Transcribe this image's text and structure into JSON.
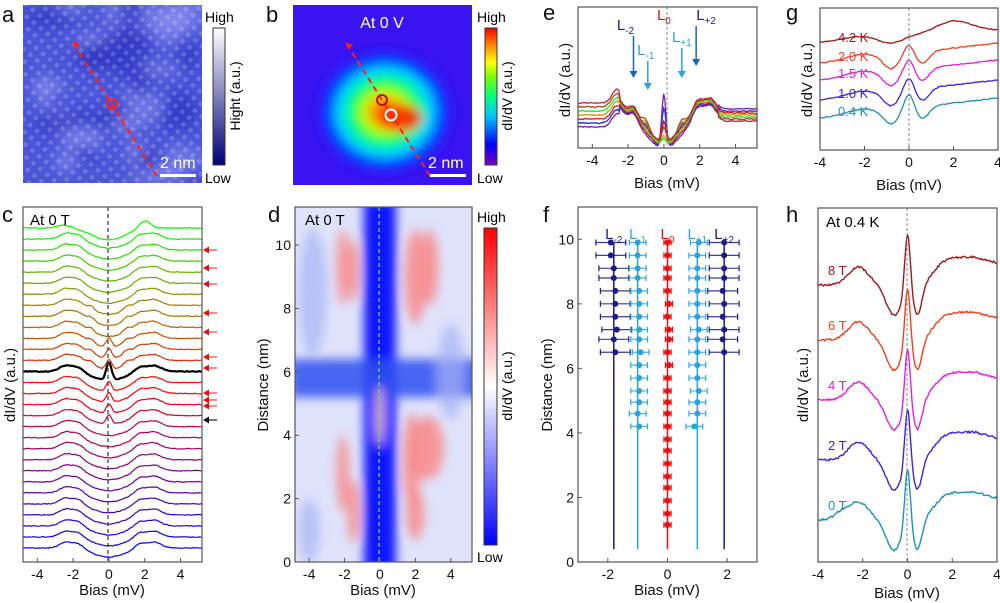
{
  "figure": {
    "panels": [
      "a",
      "b",
      "c",
      "d",
      "e",
      "f",
      "g",
      "h"
    ]
  },
  "chart_data": [
    {
      "panel": "a",
      "type": "heatmap",
      "description": "STM topography image",
      "colorbar": {
        "label": "Hight (a.u.)",
        "high": "High",
        "low": "Low",
        "colors": [
          "#00007a",
          "#ffffff"
        ]
      },
      "scale_bar": "2 nm",
      "annotations": [
        "red dashed arrow (line cut)",
        "red circle marker"
      ]
    },
    {
      "panel": "b",
      "type": "heatmap",
      "title": "At 0 V",
      "description": "dI/dV map at zero bias",
      "colorbar": {
        "label": "dI/dV (a.u.)",
        "high": "High",
        "low": "Low",
        "colors": [
          "#8000c0",
          "#0000ff",
          "#00c0ff",
          "#00ff80",
          "#80ff00",
          "#ffff00",
          "#ff8000",
          "#ff0000"
        ]
      },
      "scale_bar": "2 nm",
      "annotations": [
        "red dashed arrow (line cut)",
        "red circle marker",
        "white circle marker"
      ]
    },
    {
      "panel": "c",
      "type": "line",
      "title": "At 0 T",
      "xlabel": "Bias (mV)",
      "ylabel": "dI/dV (a.u.)",
      "xlim": [
        -4.8,
        5.2
      ],
      "xticks": [
        "-4",
        "-2",
        "0",
        "2",
        "4"
      ],
      "n_spectra": 30,
      "highlighted_spectrum_color": "#000000",
      "color_gradient": [
        "#0000ff",
        "#800080",
        "#ff0000",
        "#a08000",
        "#00ff00"
      ],
      "red_arrow_count": 10,
      "black_arrow_count": 1
    },
    {
      "panel": "d",
      "type": "heatmap",
      "title": "At 0 T",
      "xlabel": "Bias (mV)",
      "ylabel": "Distance (nm)",
      "xlim": [
        -4.8,
        5.2
      ],
      "ylim": [
        0,
        11.2
      ],
      "xticks": [
        "-4",
        "-2",
        "0",
        "2",
        "4"
      ],
      "yticks": [
        "0",
        "2",
        "4",
        "6",
        "8",
        "10"
      ],
      "colorbar": {
        "label": "dI/dV (a.u.)",
        "high": "High",
        "low": "Low",
        "colors": [
          "#0000ff",
          "#ffffff",
          "#ff0000"
        ]
      }
    },
    {
      "panel": "e",
      "type": "line",
      "xlabel": "Bias (mV)",
      "ylabel": "dI/dV (a.u.)",
      "xlim": [
        -4.8,
        5.2
      ],
      "xticks": [
        "-4",
        "-2",
        "0",
        "2",
        "4"
      ],
      "peak_labels": [
        {
          "text": "L",
          "sub": "-2",
          "bias": -1.7,
          "color": "#1a1a8c",
          "arrow_color": "#1565c0"
        },
        {
          "text": "L",
          "sub": "-1",
          "bias": -0.9,
          "color": "#29a3e0",
          "arrow_color": "#29a3e0"
        },
        {
          "text": "L",
          "sub": "0",
          "bias": 0.0,
          "color": "#e01010",
          "arrow_color": null
        },
        {
          "text": "L",
          "sub": "+1",
          "bias": 1.0,
          "color": "#29a3e0",
          "arrow_color": "#29a3e0"
        },
        {
          "text": "L",
          "sub": "+2",
          "bias": 1.8,
          "color": "#1a1a8c",
          "arrow_color": "#1565c0"
        }
      ],
      "series_colors": [
        "#7b1fa2",
        "#2030e0",
        "#e01818",
        "#c0a000",
        "#30e030",
        "#a05010",
        "#c02040"
      ]
    },
    {
      "panel": "f",
      "type": "scatter",
      "xlabel": "Bias (mV)",
      "ylabel": "Distance (nm)",
      "xlim": [
        -3,
        3
      ],
      "ylim": [
        0,
        11
      ],
      "xticks": [
        "-2",
        "0",
        "2"
      ],
      "yticks": [
        "0",
        "2",
        "4",
        "6",
        "8",
        "10"
      ],
      "series": [
        {
          "name": "L-2",
          "label": "L",
          "sub": "-2",
          "color": "#1a1a8c",
          "line_x": -1.8,
          "points": [
            [
              -1.9,
              9.9
            ],
            [
              -1.9,
              9.5
            ],
            [
              -1.8,
              9.1
            ],
            [
              -1.8,
              8.8
            ],
            [
              -1.75,
              8.4
            ],
            [
              -1.75,
              8.0
            ],
            [
              -1.75,
              7.6
            ],
            [
              -1.7,
              7.2
            ],
            [
              -1.8,
              6.9
            ],
            [
              -1.75,
              6.5
            ]
          ],
          "xerr": 0.5,
          "line_y": [
            0.4,
            9.9
          ]
        },
        {
          "name": "L-1",
          "label": "L",
          "sub": "-1",
          "color": "#29a3e0",
          "line_x": -1.0,
          "points": [
            [
              -1.0,
              9.9
            ],
            [
              -1.0,
              9.5
            ],
            [
              -1.0,
              9.1
            ],
            [
              -1.0,
              8.8
            ],
            [
              -0.95,
              8.4
            ],
            [
              -0.95,
              8.0
            ],
            [
              -0.95,
              7.6
            ],
            [
              -0.95,
              7.2
            ],
            [
              -0.95,
              6.9
            ],
            [
              -0.9,
              6.5
            ],
            [
              -0.95,
              6.1
            ],
            [
              -0.95,
              5.7
            ],
            [
              -0.95,
              5.3
            ],
            [
              -0.95,
              4.95
            ],
            [
              -1.0,
              4.6
            ],
            [
              -0.95,
              4.2
            ]
          ],
          "xerr": 0.28,
          "line_y": [
            0.4,
            9.9
          ]
        },
        {
          "name": "L0",
          "label": "L",
          "sub": "0",
          "color": "#e81010",
          "line_x": 0.0,
          "points": [
            [
              0,
              9.9
            ],
            [
              0,
              9.5
            ],
            [
              0,
              9.1
            ],
            [
              0,
              8.8
            ],
            [
              0,
              8.4
            ],
            [
              0.05,
              8.0
            ],
            [
              0,
              7.6
            ],
            [
              0.05,
              7.2
            ],
            [
              0.05,
              6.9
            ],
            [
              0,
              6.5
            ],
            [
              0.05,
              6.1
            ],
            [
              0,
              5.7
            ],
            [
              0,
              5.3
            ],
            [
              0,
              4.95
            ],
            [
              0,
              4.6
            ],
            [
              0,
              4.2
            ],
            [
              0,
              3.8
            ],
            [
              0,
              3.45
            ],
            [
              0,
              3.05
            ],
            [
              0,
              2.65
            ],
            [
              0,
              2.3
            ],
            [
              0,
              1.9
            ],
            [
              0,
              1.5
            ],
            [
              0,
              1.15
            ]
          ],
          "xerr": 0.12,
          "line_y": [
            0.4,
            9.9
          ]
        },
        {
          "name": "L+1",
          "label": "L",
          "sub": "+1",
          "color": "#29a3e0",
          "line_x": 1.0,
          "points": [
            [
              1.05,
              9.9
            ],
            [
              1.0,
              9.5
            ],
            [
              1.0,
              9.1
            ],
            [
              1.0,
              8.8
            ],
            [
              1.0,
              8.4
            ],
            [
              1.0,
              8.0
            ],
            [
              1.0,
              7.6
            ],
            [
              1.05,
              7.2
            ],
            [
              1.0,
              6.9
            ],
            [
              1.0,
              6.5
            ],
            [
              1.0,
              6.1
            ],
            [
              1.05,
              5.3
            ],
            [
              1.0,
              5.7
            ],
            [
              1.0,
              4.95
            ],
            [
              1.0,
              4.6
            ],
            [
              0.9,
              4.2
            ]
          ],
          "xerr": 0.28,
          "line_y": [
            0.4,
            9.9
          ]
        },
        {
          "name": "L+2",
          "label": "L",
          "sub": "+2",
          "color": "#1a1a8c",
          "line_x": 1.9,
          "points": [
            [
              1.9,
              9.9
            ],
            [
              1.9,
              9.5
            ],
            [
              1.9,
              9.1
            ],
            [
              1.9,
              8.8
            ],
            [
              1.85,
              8.4
            ],
            [
              1.9,
              8.0
            ],
            [
              1.85,
              7.6
            ],
            [
              1.9,
              7.2
            ],
            [
              1.85,
              6.9
            ],
            [
              1.9,
              6.5
            ]
          ],
          "xerr": 0.5,
          "line_y": [
            0.4,
            9.9
          ]
        }
      ]
    },
    {
      "panel": "g",
      "type": "line",
      "xlabel": "Bias (mV)",
      "ylabel": "dI/dV (a.u.)",
      "xlim": [
        -4,
        4
      ],
      "xticks": [
        "-4",
        "-2",
        "0",
        "2",
        "4"
      ],
      "series": [
        {
          "name": "4.2 K",
          "color": "#a01818"
        },
        {
          "name": "2.0 K",
          "color": "#f04020"
        },
        {
          "name": "1.5 K",
          "color": "#e020e0"
        },
        {
          "name": "1.0 K",
          "color": "#4020e0"
        },
        {
          "name": "0.4 K",
          "color": "#2090b8"
        }
      ]
    },
    {
      "panel": "h",
      "type": "line",
      "title": "At 0.4 K",
      "xlabel": "Bias (mV)",
      "ylabel": "dI/dV (a.u.)",
      "xlim": [
        -4,
        4
      ],
      "xticks": [
        "-4",
        "-2",
        "0",
        "2",
        "4"
      ],
      "series": [
        {
          "name": "8 T",
          "color": "#a01818"
        },
        {
          "name": "6 T",
          "color": "#f04020"
        },
        {
          "name": "4 T",
          "color": "#e020e0"
        },
        {
          "name": "2 T",
          "color": "#4020e0"
        },
        {
          "name": "0 T",
          "color": "#2090b8"
        }
      ]
    }
  ]
}
